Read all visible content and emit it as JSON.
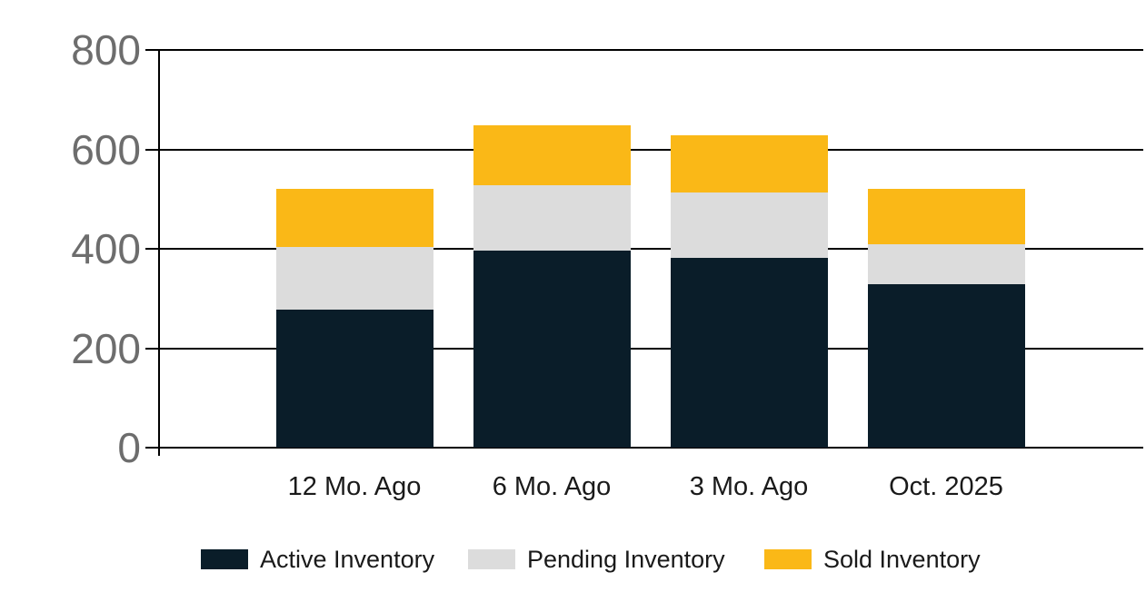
{
  "chart_data": {
    "type": "bar",
    "stacked": true,
    "title": "",
    "categories": [
      "12 Mo. Ago",
      "6 Mo. Ago",
      "3 Mo. Ago",
      "Oct. 2025"
    ],
    "series": [
      {
        "name": "Active Inventory",
        "color": "#0a1d29",
        "values": [
          278,
          396,
          381,
          328
        ]
      },
      {
        "name": "Pending Inventory",
        "color": "#dcdcdc",
        "values": [
          125,
          131,
          132,
          82
        ]
      },
      {
        "name": "Sold Inventory",
        "color": "#fab817",
        "values": [
          117,
          121,
          115,
          110
        ]
      }
    ],
    "ylim": [
      0,
      800
    ],
    "yticks": [
      0,
      200,
      400,
      600,
      800
    ],
    "grid": true,
    "legend_position": "bottom",
    "colors": {
      "background": "#ffffff",
      "grid_line": "#000000",
      "y_tick_label": "#6d6d6d",
      "category_label": "#1a1a1a",
      "legend_label": "#1a1a1a"
    }
  }
}
